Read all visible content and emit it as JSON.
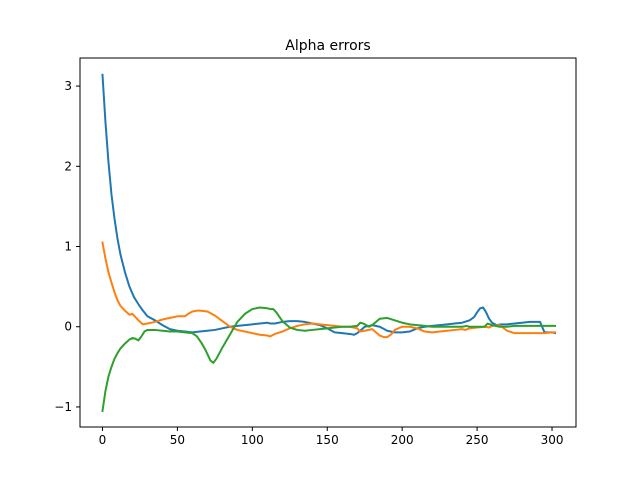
{
  "chart_data": {
    "type": "line",
    "title": "Alpha errors",
    "xlabel": "",
    "ylabel": "",
    "xlim": [
      -15,
      316
    ],
    "ylim": [
      -1.25,
      3.35
    ],
    "xticks": [
      0,
      50,
      100,
      150,
      200,
      250,
      300
    ],
    "xtick_labels": [
      "0",
      "50",
      "100",
      "150",
      "200",
      "250",
      "300"
    ],
    "yticks": [
      -1,
      0,
      1,
      2,
      3
    ],
    "ytick_labels": [
      "−1",
      "0",
      "1",
      "2",
      "3"
    ],
    "grid": false,
    "legend": "none",
    "series": [
      {
        "color": "#1f77b4",
        "x": [
          0,
          2,
          4,
          6,
          8,
          10,
          12,
          15,
          18,
          21,
          24,
          27,
          30,
          35,
          40,
          45,
          50,
          55,
          60,
          65,
          70,
          75,
          80,
          85,
          90,
          95,
          100,
          105,
          110,
          112,
          115,
          120,
          125,
          130,
          135,
          140,
          145,
          150,
          155,
          160,
          165,
          168,
          170,
          172,
          175,
          178,
          180,
          185,
          190,
          195,
          200,
          205,
          210,
          215,
          220,
          225,
          230,
          235,
          240,
          245,
          248,
          250,
          252,
          254,
          256,
          258,
          260,
          263,
          266,
          270,
          275,
          280,
          285,
          290,
          292,
          295,
          300,
          302
        ],
        "values": [
          3.14,
          2.55,
          2.05,
          1.65,
          1.35,
          1.1,
          0.9,
          0.68,
          0.5,
          0.37,
          0.28,
          0.2,
          0.13,
          0.08,
          0.02,
          -0.03,
          -0.05,
          -0.06,
          -0.07,
          -0.06,
          -0.05,
          -0.04,
          -0.02,
          0.0,
          0.01,
          0.02,
          0.03,
          0.04,
          0.05,
          0.04,
          0.04,
          0.06,
          0.07,
          0.07,
          0.06,
          0.04,
          0.02,
          -0.02,
          -0.07,
          -0.08,
          -0.09,
          -0.1,
          -0.08,
          -0.05,
          0.0,
          0.01,
          0.02,
          0.0,
          -0.05,
          -0.07,
          -0.07,
          -0.06,
          -0.02,
          0.0,
          0.01,
          0.02,
          0.03,
          0.04,
          0.05,
          0.08,
          0.12,
          0.18,
          0.23,
          0.24,
          0.18,
          0.1,
          0.05,
          0.02,
          0.03,
          0.03,
          0.04,
          0.05,
          0.06,
          0.06,
          0.06,
          -0.07,
          -0.07,
          -0.08
        ]
      },
      {
        "color": "#ff7f0e",
        "x": [
          0,
          2,
          4,
          6,
          8,
          10,
          12,
          15,
          18,
          20,
          22,
          24,
          27,
          30,
          35,
          40,
          45,
          50,
          55,
          58,
          60,
          63,
          65,
          70,
          75,
          80,
          85,
          90,
          95,
          100,
          105,
          110,
          112,
          115,
          120,
          125,
          130,
          135,
          140,
          145,
          150,
          155,
          160,
          165,
          170,
          172,
          175,
          180,
          185,
          188,
          190,
          193,
          195,
          200,
          205,
          210,
          215,
          220,
          225,
          230,
          235,
          240,
          242,
          245,
          250,
          255,
          258,
          260,
          265,
          270,
          275,
          280,
          285,
          290,
          295,
          300,
          302
        ],
        "values": [
          1.05,
          0.85,
          0.68,
          0.55,
          0.43,
          0.33,
          0.26,
          0.2,
          0.15,
          0.16,
          0.12,
          0.08,
          0.03,
          0.04,
          0.06,
          0.09,
          0.11,
          0.13,
          0.13,
          0.17,
          0.19,
          0.2,
          0.2,
          0.19,
          0.14,
          0.07,
          0.0,
          -0.04,
          -0.06,
          -0.08,
          -0.1,
          -0.11,
          -0.12,
          -0.09,
          -0.06,
          -0.02,
          0.01,
          0.03,
          0.04,
          0.03,
          0.02,
          0.01,
          0.0,
          0.0,
          -0.02,
          -0.06,
          -0.05,
          -0.03,
          -0.11,
          -0.13,
          -0.13,
          -0.09,
          -0.04,
          0.0,
          0.0,
          -0.02,
          -0.06,
          -0.07,
          -0.06,
          -0.05,
          -0.04,
          -0.03,
          -0.04,
          -0.02,
          -0.01,
          0.0,
          -0.01,
          0.01,
          0.02,
          -0.05,
          -0.08,
          -0.08,
          -0.08,
          -0.08,
          -0.08,
          -0.07,
          -0.07
        ]
      },
      {
        "color": "#2ca02c",
        "x": [
          0,
          2,
          4,
          6,
          8,
          10,
          12,
          15,
          18,
          20,
          22,
          24,
          26,
          28,
          30,
          35,
          40,
          45,
          50,
          55,
          60,
          63,
          66,
          69,
          72,
          74,
          76,
          80,
          85,
          90,
          95,
          100,
          105,
          110,
          112,
          114,
          116,
          120,
          125,
          130,
          135,
          140,
          145,
          150,
          155,
          160,
          165,
          170,
          172,
          174,
          176,
          178,
          180,
          185,
          190,
          195,
          200,
          205,
          210,
          215,
          220,
          225,
          230,
          235,
          240,
          243,
          245,
          250,
          255,
          257,
          260,
          265,
          270,
          275,
          280,
          285,
          290,
          295,
          300,
          302
        ],
        "values": [
          -1.05,
          -0.8,
          -0.62,
          -0.5,
          -0.4,
          -0.33,
          -0.27,
          -0.21,
          -0.16,
          -0.14,
          -0.15,
          -0.17,
          -0.12,
          -0.06,
          -0.04,
          -0.04,
          -0.05,
          -0.06,
          -0.06,
          -0.07,
          -0.08,
          -0.12,
          -0.2,
          -0.3,
          -0.42,
          -0.45,
          -0.4,
          -0.26,
          -0.1,
          0.06,
          0.16,
          0.22,
          0.24,
          0.23,
          0.22,
          0.22,
          0.18,
          0.07,
          -0.01,
          -0.04,
          -0.05,
          -0.04,
          -0.03,
          -0.02,
          -0.01,
          0.0,
          0.0,
          0.01,
          0.05,
          0.04,
          0.02,
          0.0,
          0.02,
          0.1,
          0.11,
          0.08,
          0.05,
          0.03,
          0.02,
          0.01,
          0.0,
          0.0,
          0.0,
          0.0,
          0.0,
          0.01,
          0.0,
          0.0,
          0.0,
          0.04,
          0.02,
          0.0,
          0.0,
          0.01,
          0.01,
          0.01,
          0.01,
          0.01,
          0.01,
          0.01
        ]
      }
    ]
  }
}
